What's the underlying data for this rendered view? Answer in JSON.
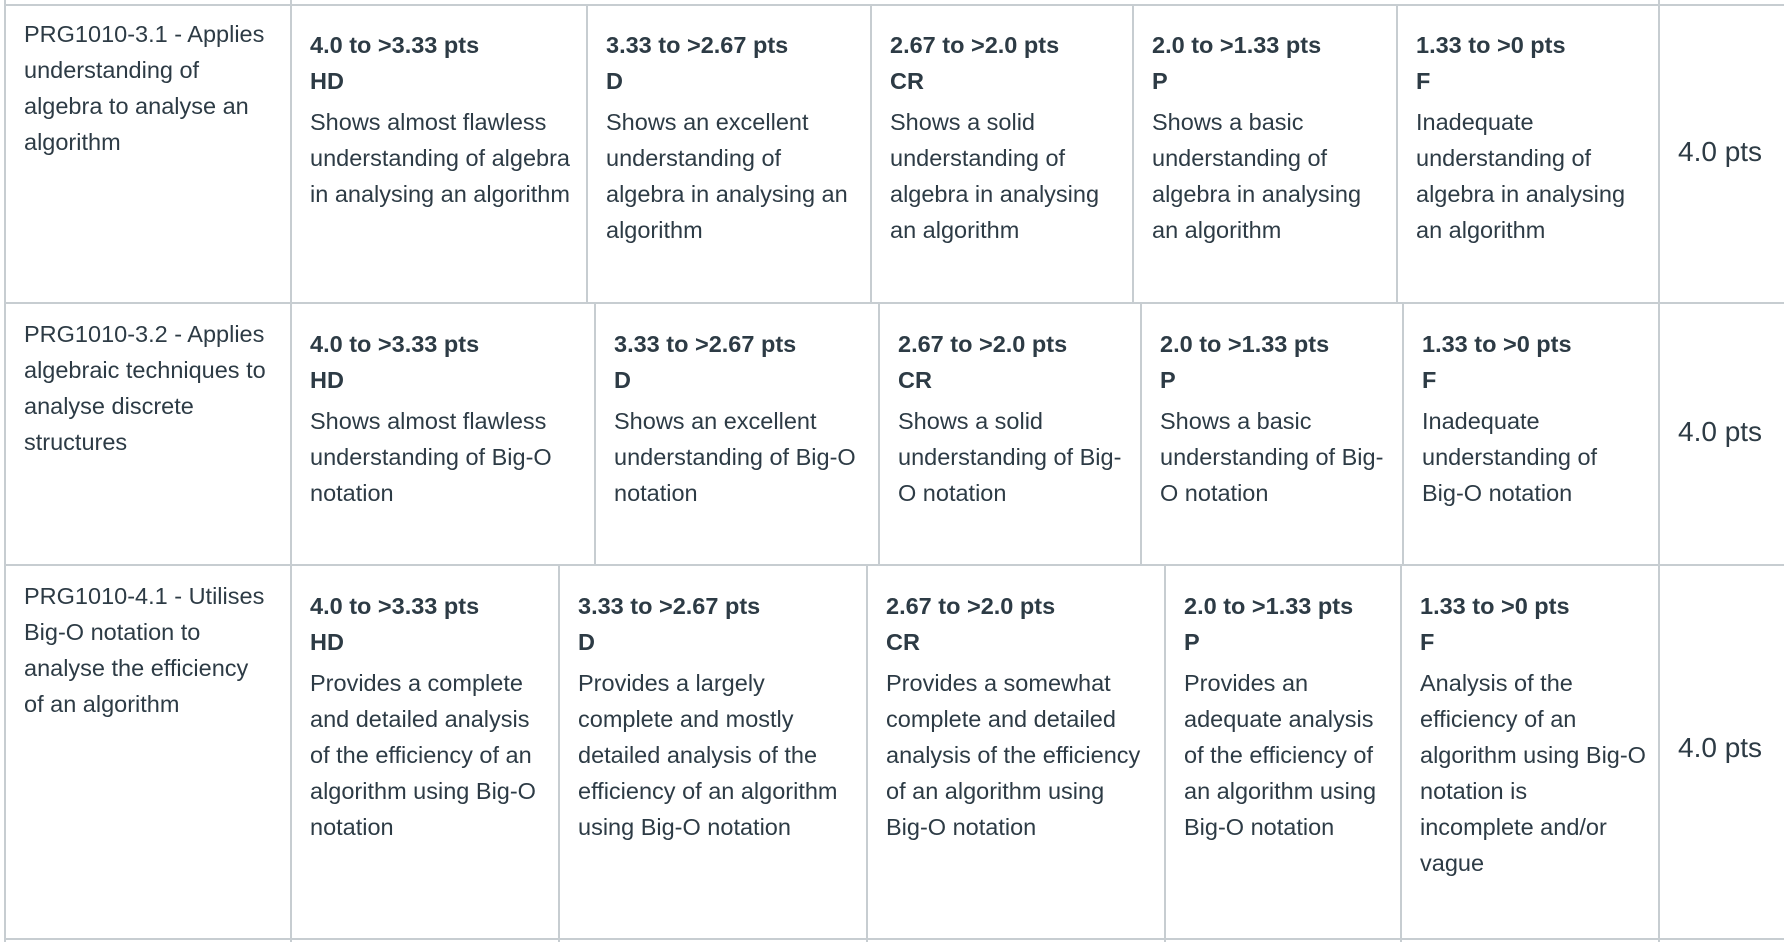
{
  "rows": [
    {
      "criterion": "PRG1010-3.1 - Applies understanding of algebra to analyse an algorithm",
      "total": "4.0 pts",
      "ratings": [
        {
          "pts": "4.0 to >3.33 pts",
          "code": "HD",
          "desc": "Shows almost flawless understanding of algebra in analysing an algorithm"
        },
        {
          "pts": "3.33 to >2.67 pts",
          "code": "D",
          "desc": "Shows an excellent understanding of algebra in analysing an algorithm"
        },
        {
          "pts": "2.67 to >2.0 pts",
          "code": "CR",
          "desc": "Shows a solid understanding of algebra in analysing an algorithm"
        },
        {
          "pts": "2.0 to >1.33 pts",
          "code": "P",
          "desc": "Shows a basic understanding of algebra in analysing an algorithm"
        },
        {
          "pts": "1.33 to >0 pts",
          "code": "F",
          "desc": "Inadequate understanding of algebra in analysing an algorithm"
        }
      ]
    },
    {
      "criterion": "PRG1010-3.2 - Applies algebraic techniques to analyse discrete structures",
      "total": "4.0 pts",
      "ratings": [
        {
          "pts": "4.0 to >3.33 pts",
          "code": "HD",
          "desc": "Shows almost flawless understanding of Big-O notation"
        },
        {
          "pts": "3.33 to >2.67 pts",
          "code": "D",
          "desc": "Shows an excellent understanding of Big-O notation"
        },
        {
          "pts": "2.67 to >2.0 pts",
          "code": "CR",
          "desc": "Shows a solid understanding of Big-O notation"
        },
        {
          "pts": "2.0 to >1.33 pts",
          "code": "P",
          "desc": "Shows a basic understanding of Big-O notation"
        },
        {
          "pts": "1.33 to >0 pts",
          "code": "F",
          "desc": "Inadequate understanding of Big-O notation"
        }
      ]
    },
    {
      "criterion": "PRG1010-4.1 - Utilises Big-O notation to analyse the efficiency of an algorithm",
      "total": "4.0 pts",
      "ratings": [
        {
          "pts": "4.0 to >3.33 pts",
          "code": "HD",
          "desc": "Provides a complete and detailed analysis of the efficiency of an algorithm using Big-O notation"
        },
        {
          "pts": "3.33 to >2.67 pts",
          "code": "D",
          "desc": "Provides a largely complete and mostly detailed analysis of the efficiency of an algorithm using Big-O notation"
        },
        {
          "pts": "2.67 to >2.0 pts",
          "code": "CR",
          "desc": "Provides a somewhat complete and detailed analysis of the efficiency of an algorithm using Big-O notation"
        },
        {
          "pts": "2.0 to >1.33 pts",
          "code": "P",
          "desc": "Provides an adequate analysis of the efficiency of an algorithm using Big-O notation"
        },
        {
          "pts": "1.33 to >0 pts",
          "code": "F",
          "desc": "Analysis of the efficiency of an algorithm using Big-O notation is incomplete and/or vague"
        }
      ]
    }
  ]
}
